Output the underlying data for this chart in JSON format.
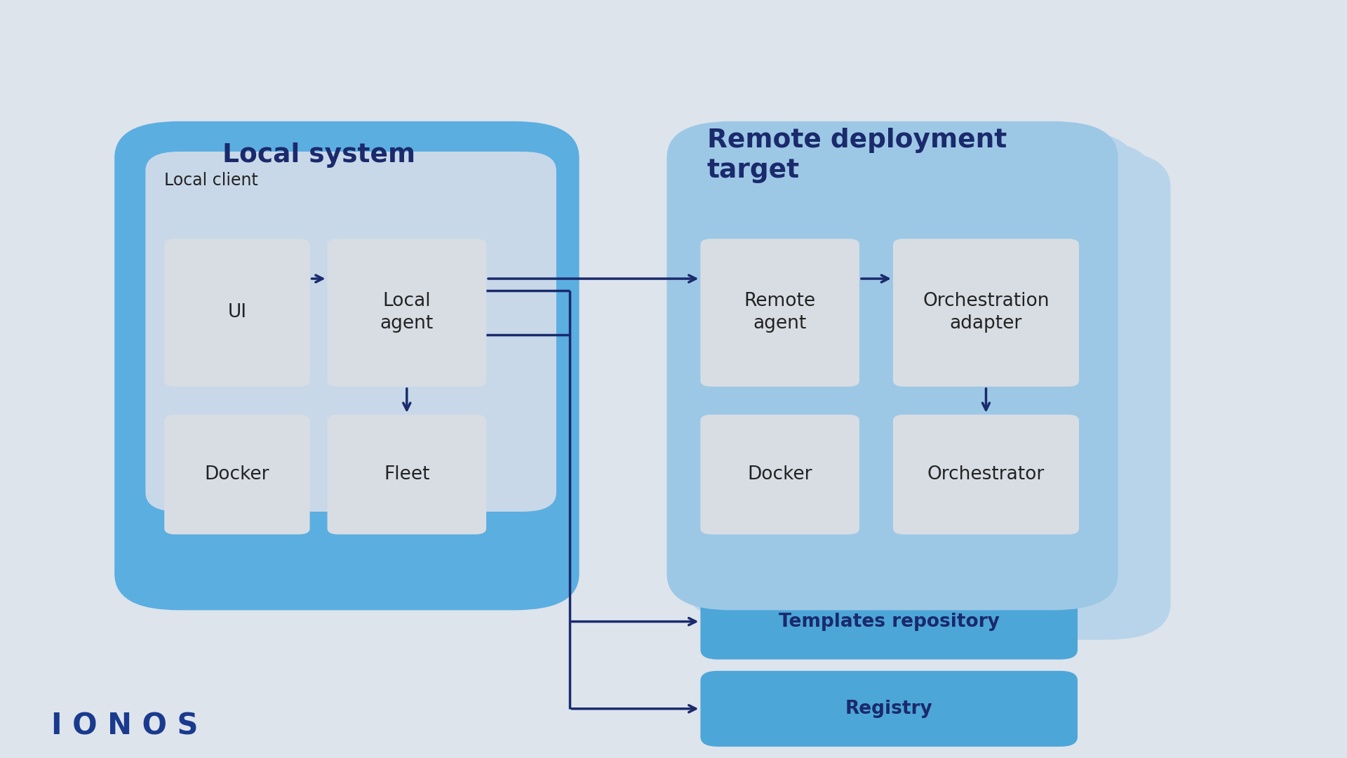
{
  "bg_color": "#dde4ec",
  "arrow_color": "#1a2a6c",
  "local_system_color": "#5baee0",
  "local_client_color": "#c8d8e8",
  "remote_system_color": "#9dc8e5",
  "remote_stack_color": "#b8d4ea",
  "box_gray": "#d8dde4",
  "teal_box": "#4da6d8",
  "text_dark": "#1a2a6c",
  "text_box": "#222222",
  "local_system_label": "Local system",
  "local_client_label": "Local client",
  "remote_label": "Remote deployment\ntarget",
  "ionos_color": "#1a3a8e",
  "ui_label": "UI",
  "local_agent_label": "Local\nagent",
  "docker_local_label": "Docker",
  "fleet_label": "Fleet",
  "remote_agent_label": "Remote\nagent",
  "orch_adapter_label": "Orchestration\nadapter",
  "docker_remote_label": "Docker",
  "orchestrator_label": "Orchestrator",
  "templates_label": "Templates repository",
  "registry_label": "Registry",
  "ionos_label": "I O N O S"
}
